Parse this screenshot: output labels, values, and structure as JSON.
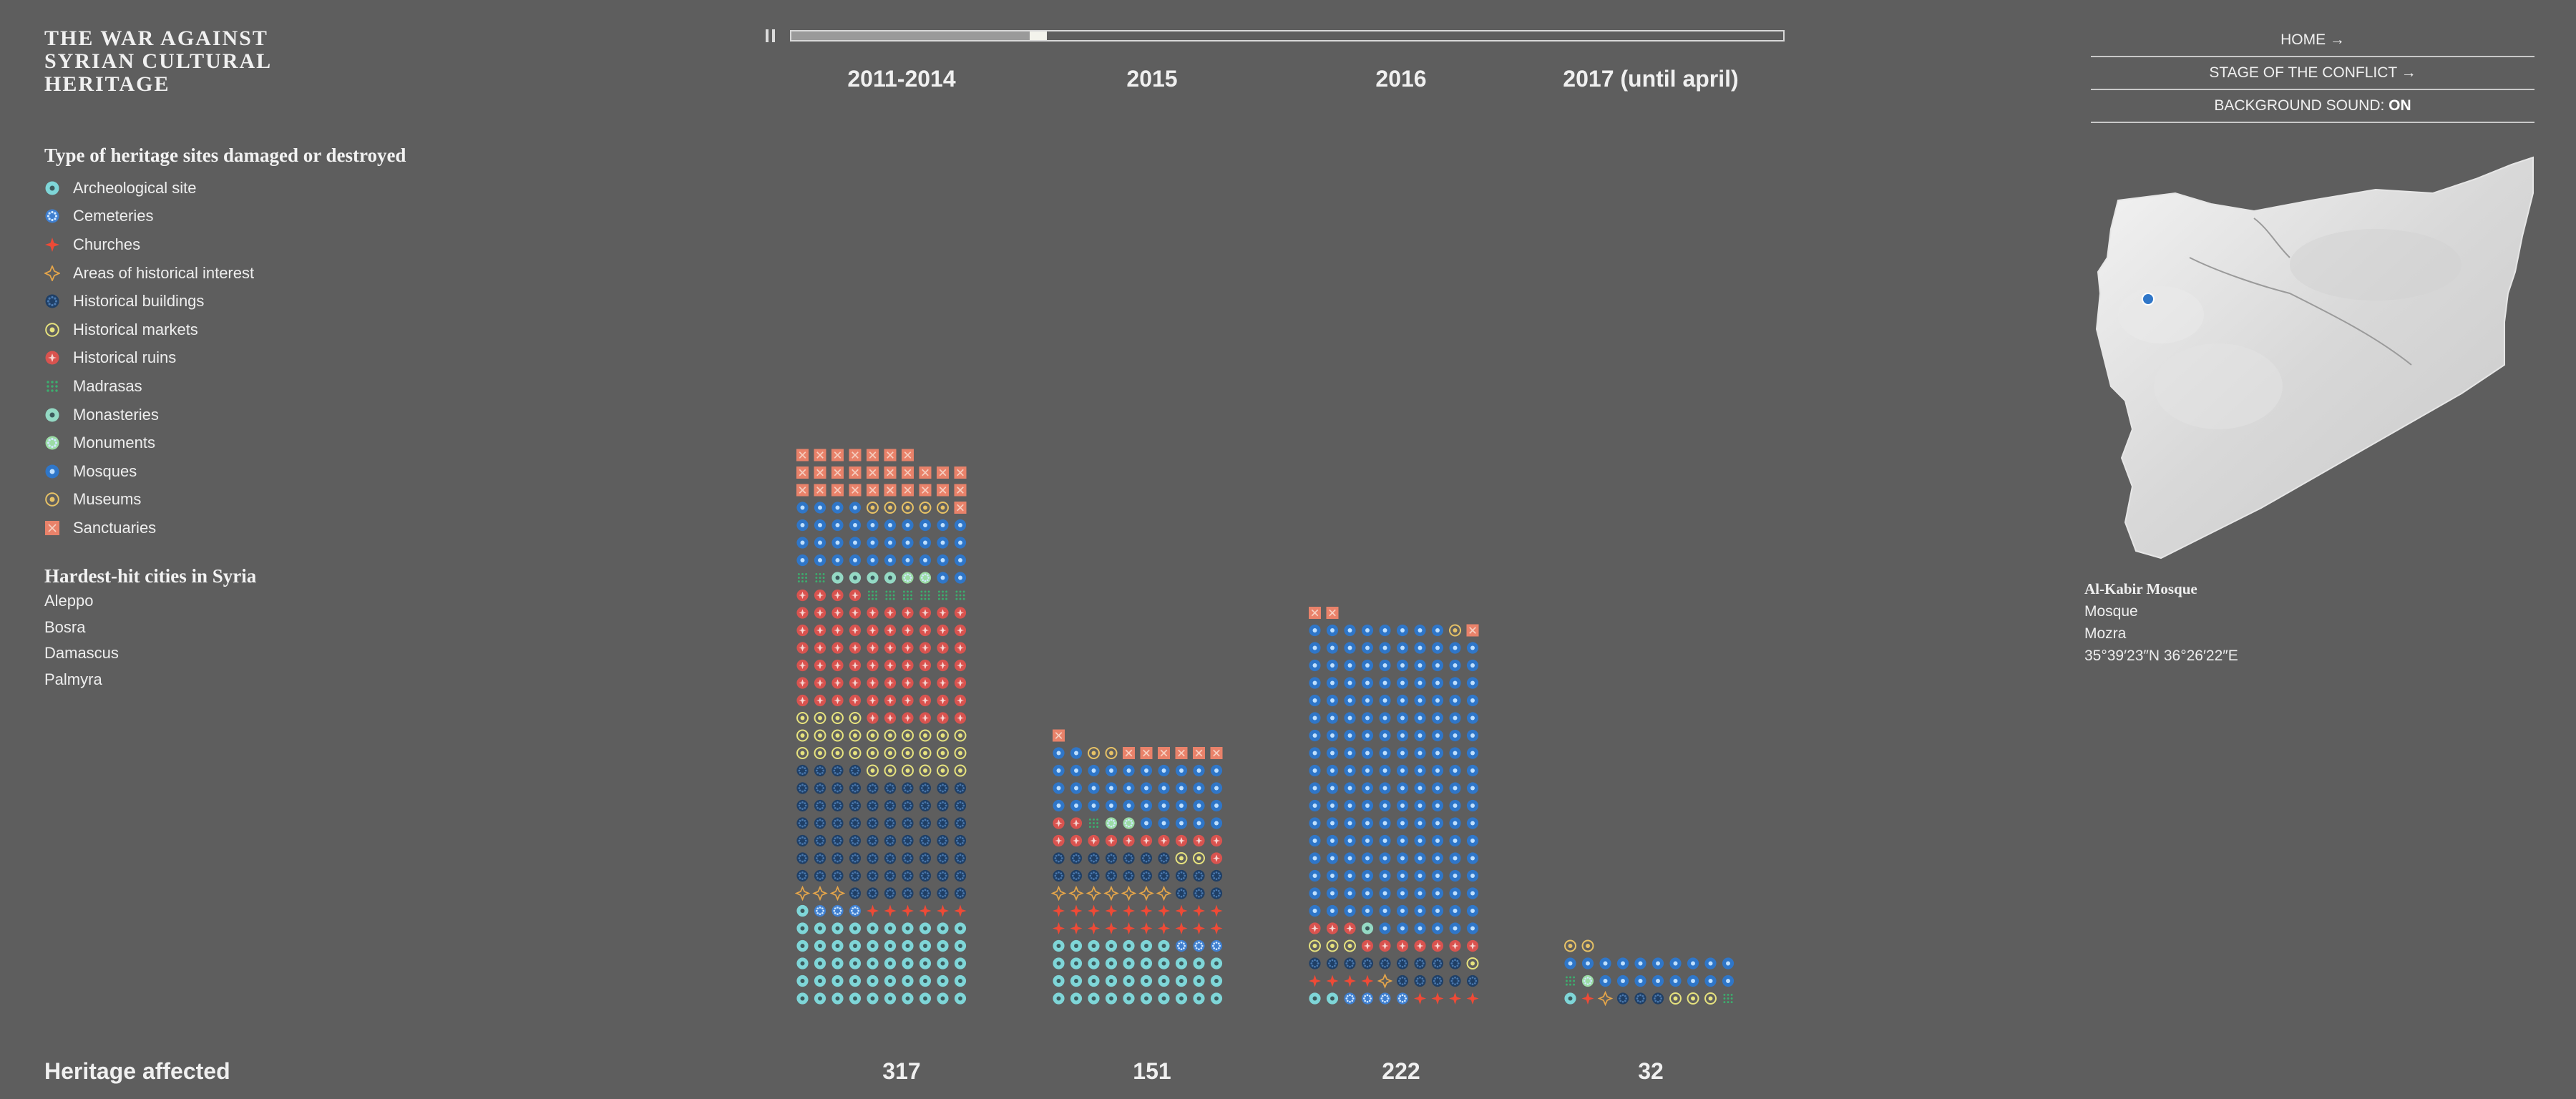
{
  "title": "THE WAR AGAINST SYRIAN CULTURAL HERITAGE",
  "legend_heading": "Type of heritage sites damaged or destroyed",
  "legend": [
    {
      "key": "arch",
      "label": "Archeological site",
      "color": "#7fd6d8",
      "icon": "archeological-site-icon"
    },
    {
      "key": "cem",
      "label": "Cemeteries",
      "color": "#3f7fd0",
      "icon": "cemetery-icon"
    },
    {
      "key": "chu",
      "label": "Churches",
      "color": "#ef4a36",
      "icon": "church-icon"
    },
    {
      "key": "area",
      "label": "Areas of historical interest",
      "color": "#e5a54a",
      "icon": "historical-area-icon"
    },
    {
      "key": "bld",
      "label": "Historical buildings",
      "color": "#1f3f66",
      "icon": "historical-building-icon"
    },
    {
      "key": "mkt",
      "label": "Historical markets",
      "color": "#e6e27e",
      "icon": "historical-market-icon"
    },
    {
      "key": "ruin",
      "label": "Historical ruins",
      "color": "#d9534f",
      "icon": "historical-ruin-icon"
    },
    {
      "key": "mad",
      "label": "Madrasas",
      "color": "#3cae6e",
      "icon": "madrasa-icon"
    },
    {
      "key": "mon",
      "label": "Monasteries",
      "color": "#94d9c4",
      "icon": "monastery-icon"
    },
    {
      "key": "mnt",
      "label": "Monuments",
      "color": "#9bdca4",
      "icon": "monument-icon"
    },
    {
      "key": "mosq",
      "label": "Mosques",
      "color": "#2f76c8",
      "icon": "mosque-icon"
    },
    {
      "key": "mus",
      "label": "Museums",
      "color": "#e7c266",
      "icon": "museum-icon"
    },
    {
      "key": "sanc",
      "label": "Sanctuaries",
      "color": "#e9826a",
      "icon": "sanctuary-icon"
    }
  ],
  "cities_heading": "Hardest-hit cities in Syria",
  "cities": [
    "Aleppo",
    "Bosra",
    "Damascus",
    "Palmyra"
  ],
  "timeline": {
    "progress": 0.24,
    "pause_icon": "pause-icon"
  },
  "nav": {
    "home": "HOME →",
    "stage": "STAGE OF THE CONFLICT →",
    "sound_label": "BACKGROUND SOUND: ",
    "sound_value": "ON"
  },
  "map": {
    "marker_color": "#2f76c8"
  },
  "selected_site": {
    "name": "Al-Kabir Mosque",
    "type": "Mosque",
    "place": "Mozra",
    "coords": "35°39′23″N 36°26′22″E"
  },
  "footer_label": "Heritage affected",
  "chart_data": {
    "type": "bar",
    "title": "",
    "categories": [
      "2011-2014",
      "2015",
      "2016",
      "2017 (until april)"
    ],
    "values": [
      317,
      151,
      222,
      32
    ],
    "unit_note": "each icon = one heritage site",
    "ylim": [
      0,
      317
    ],
    "series": [
      {
        "name": "Archeological site",
        "key": "arch",
        "values": [
          51,
          37,
          2,
          1
        ]
      },
      {
        "name": "Cemeteries",
        "key": "cem",
        "values": [
          3,
          3,
          4,
          0
        ]
      },
      {
        "name": "Churches",
        "key": "chu",
        "values": [
          6,
          20,
          8,
          1
        ]
      },
      {
        "name": "Areas of historical interest",
        "key": "area",
        "values": [
          3,
          7,
          1,
          1
        ]
      },
      {
        "name": "Historical buildings",
        "key": "bld",
        "values": [
          71,
          20,
          14,
          3
        ]
      },
      {
        "name": "Historical markets",
        "key": "mkt",
        "values": [
          30,
          2,
          4,
          3
        ]
      },
      {
        "name": "Historical ruins",
        "key": "ruin",
        "values": [
          70,
          13,
          10,
          0
        ]
      },
      {
        "name": "Madrasas",
        "key": "mad",
        "values": [
          8,
          1,
          0,
          2
        ]
      },
      {
        "name": "Monasteries",
        "key": "mon",
        "values": [
          4,
          0,
          1,
          0
        ]
      },
      {
        "name": "Monuments",
        "key": "mnt",
        "values": [
          2,
          2,
          0,
          1
        ]
      },
      {
        "name": "Mosques",
        "key": "mosq",
        "values": [
          36,
          37,
          174,
          18
        ]
      },
      {
        "name": "Museums",
        "key": "mus",
        "values": [
          5,
          2,
          1,
          2
        ]
      },
      {
        "name": "Sanctuaries",
        "key": "sanc",
        "values": [
          28,
          7,
          3,
          0
        ]
      }
    ]
  }
}
